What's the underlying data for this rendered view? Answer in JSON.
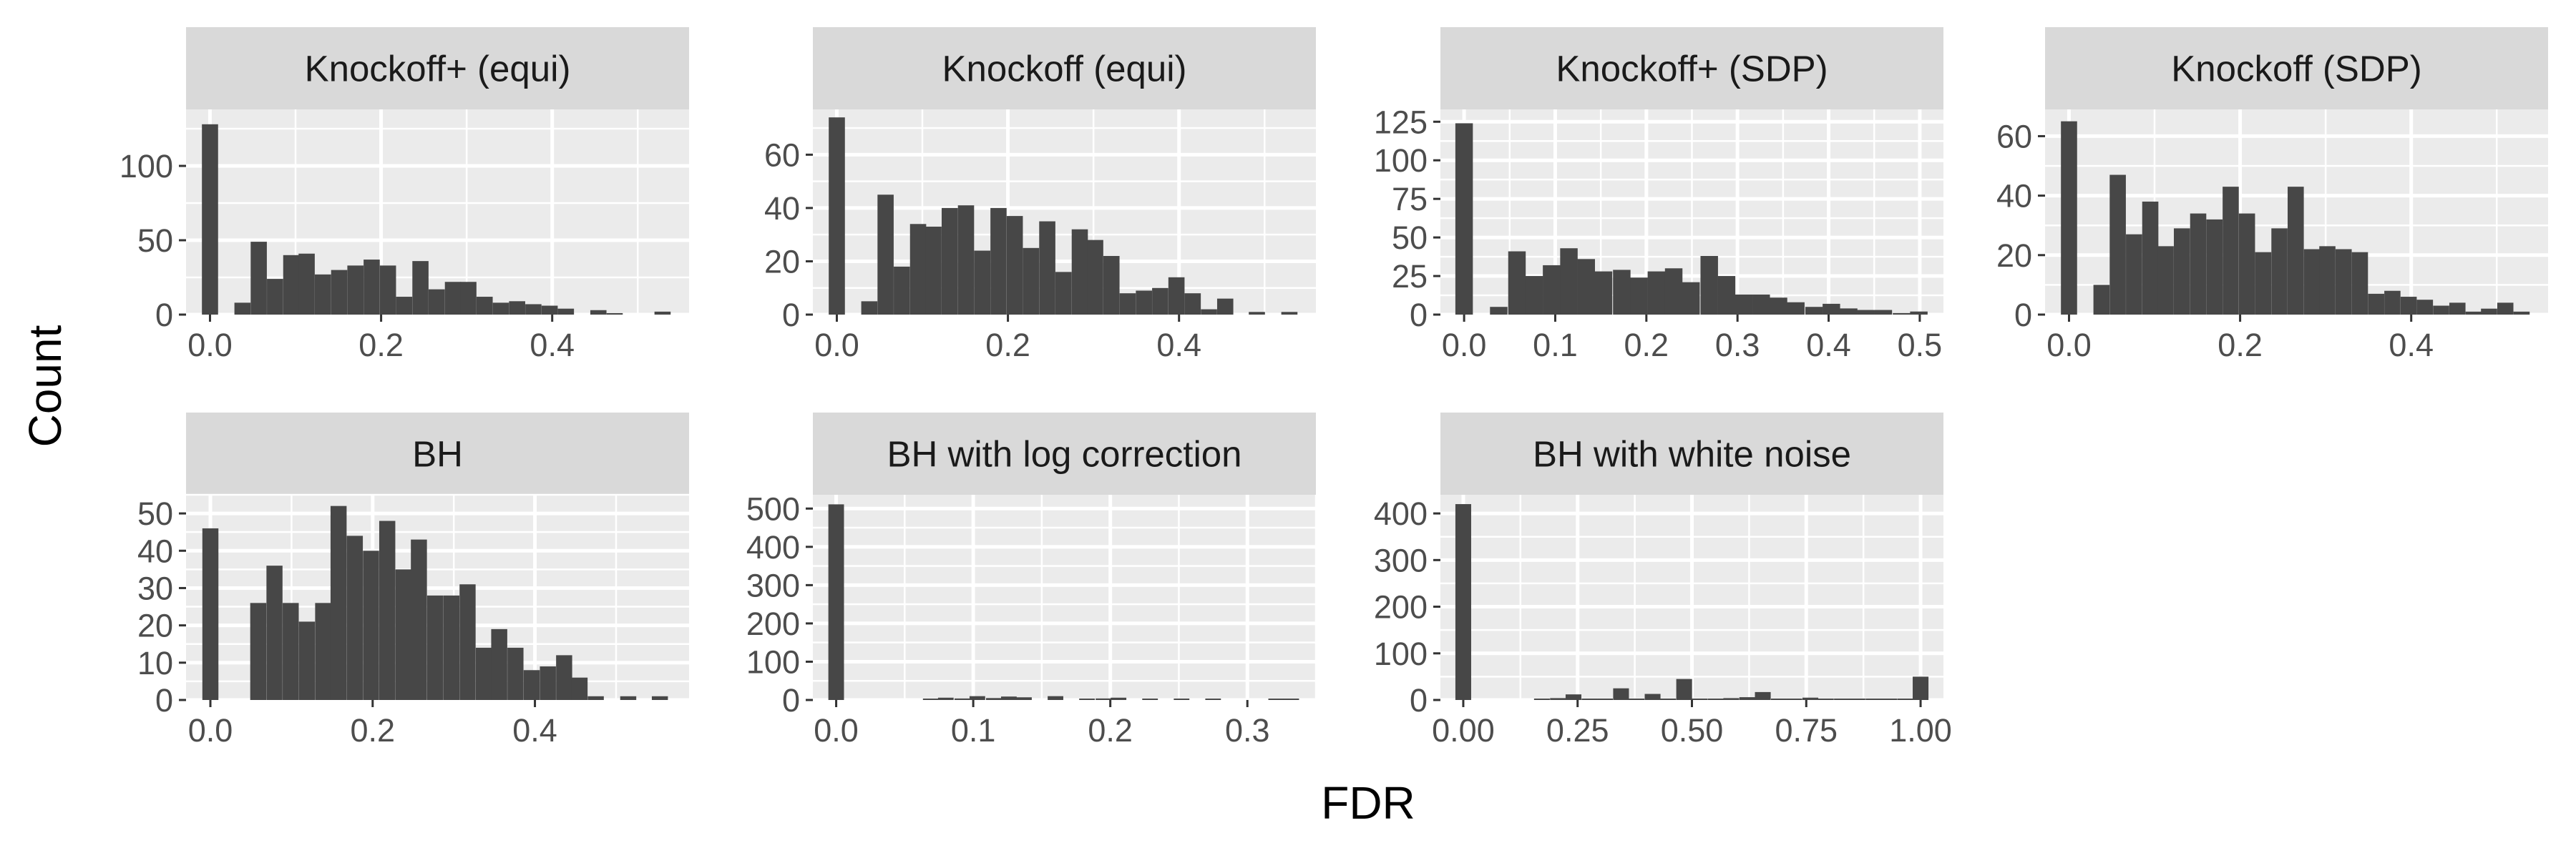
{
  "figure": {
    "xlabel": "FDR",
    "ylabel": "Count"
  },
  "colors": {
    "panel_bg": "#ebebeb",
    "grid_major": "#ffffff",
    "strip_bg": "#d9d9d9",
    "bar_fill": "#474747"
  },
  "chart_data": [
    {
      "type": "bar",
      "title": "Knockoff+ (equi)",
      "bin_width": 0.0189,
      "xlim": [
        -0.028,
        0.56
      ],
      "ylim": [
        0,
        138
      ],
      "xticks": [
        0.0,
        0.2,
        0.4
      ],
      "xtick_labels": [
        "0.0",
        "0.2",
        "0.4"
      ],
      "yticks": [
        0,
        50,
        100
      ],
      "ytick_labels": [
        "0",
        "50",
        "100"
      ],
      "bins_x": [
        0.0,
        0.038,
        0.057,
        0.076,
        0.095,
        0.113,
        0.132,
        0.151,
        0.17,
        0.189,
        0.208,
        0.227,
        0.246,
        0.265,
        0.284,
        0.302,
        0.321,
        0.34,
        0.359,
        0.378,
        0.397,
        0.416,
        0.454,
        0.473,
        0.529
      ],
      "values": [
        128,
        8,
        49,
        24,
        40,
        41,
        27,
        30,
        33,
        37,
        33,
        12,
        36,
        17,
        22,
        22,
        12,
        8,
        9,
        7,
        6,
        4,
        3,
        1,
        2
      ]
    },
    {
      "type": "bar",
      "title": "Knockoff (equi)",
      "bin_width": 0.0189,
      "xlim": [
        -0.028,
        0.56
      ],
      "ylim": [
        0,
        77
      ],
      "xticks": [
        0.0,
        0.2,
        0.4
      ],
      "xtick_labels": [
        "0.0",
        "0.2",
        "0.4"
      ],
      "yticks": [
        0,
        20,
        40,
        60
      ],
      "ytick_labels": [
        "0",
        "20",
        "40",
        "60"
      ],
      "bins_x": [
        0.0,
        0.038,
        0.057,
        0.076,
        0.095,
        0.113,
        0.132,
        0.151,
        0.17,
        0.189,
        0.208,
        0.227,
        0.246,
        0.265,
        0.284,
        0.302,
        0.321,
        0.34,
        0.359,
        0.378,
        0.397,
        0.416,
        0.435,
        0.454,
        0.491,
        0.529
      ],
      "values": [
        74,
        5,
        45,
        18,
        34,
        33,
        40,
        41,
        24,
        40,
        37,
        25,
        35,
        16,
        32,
        28,
        22,
        8,
        9,
        10,
        14,
        8,
        2,
        6,
        1,
        1
      ]
    },
    {
      "type": "bar",
      "title": "Knockoff+ (SDP)",
      "bin_width": 0.0192,
      "xlim": [
        -0.026,
        0.526
      ],
      "ylim": [
        0,
        133
      ],
      "xticks": [
        0.0,
        0.1,
        0.2,
        0.3,
        0.4,
        0.5
      ],
      "xtick_labels": [
        "0.0",
        "0.1",
        "0.2",
        "0.3",
        "0.4",
        "0.5"
      ],
      "yticks": [
        0,
        25,
        50,
        75,
        100,
        125
      ],
      "ytick_labels": [
        "0",
        "25",
        "50",
        "75",
        "100",
        "125"
      ],
      "bins_x": [
        0.0,
        0.038,
        0.058,
        0.077,
        0.096,
        0.115,
        0.134,
        0.153,
        0.173,
        0.192,
        0.211,
        0.23,
        0.249,
        0.269,
        0.288,
        0.307,
        0.326,
        0.345,
        0.364,
        0.384,
        0.403,
        0.422,
        0.441,
        0.46,
        0.48,
        0.499
      ],
      "values": [
        124,
        5,
        41,
        25,
        32,
        43,
        36,
        28,
        29,
        24,
        28,
        30,
        21,
        38,
        25,
        13,
        13,
        11,
        8,
        5,
        7,
        4,
        3,
        3,
        1,
        2
      ]
    },
    {
      "type": "bar",
      "title": "Knockoff (SDP)",
      "bin_width": 0.0189,
      "xlim": [
        -0.028,
        0.56
      ],
      "ylim": [
        0,
        69
      ],
      "xticks": [
        0.0,
        0.2,
        0.4
      ],
      "xtick_labels": [
        "0.0",
        "0.2",
        "0.4"
      ],
      "yticks": [
        0,
        20,
        40,
        60
      ],
      "ytick_labels": [
        "0",
        "20",
        "40",
        "60"
      ],
      "bins_x": [
        0.0,
        0.038,
        0.057,
        0.076,
        0.095,
        0.113,
        0.132,
        0.151,
        0.17,
        0.189,
        0.208,
        0.227,
        0.246,
        0.265,
        0.284,
        0.302,
        0.321,
        0.34,
        0.359,
        0.378,
        0.397,
        0.416,
        0.435,
        0.454,
        0.473,
        0.491,
        0.51,
        0.529
      ],
      "values": [
        65,
        10,
        47,
        27,
        38,
        23,
        29,
        34,
        32,
        43,
        34,
        21,
        29,
        43,
        22,
        23,
        22,
        21,
        7,
        8,
        6,
        5,
        3,
        4,
        1,
        2,
        4,
        1
      ]
    },
    {
      "type": "bar",
      "title": "BH",
      "bin_width": 0.0198,
      "xlim": [
        -0.03,
        0.59
      ],
      "ylim": [
        0,
        55
      ],
      "xticks": [
        0.0,
        0.2,
        0.4
      ],
      "xtick_labels": [
        "0.0",
        "0.2",
        "0.4"
      ],
      "yticks": [
        0,
        10,
        20,
        30,
        40,
        50
      ],
      "ytick_labels": [
        "0",
        "10",
        "20",
        "30",
        "40",
        "50"
      ],
      "bins_x": [
        0.0,
        0.059,
        0.079,
        0.099,
        0.119,
        0.139,
        0.158,
        0.178,
        0.198,
        0.218,
        0.238,
        0.257,
        0.277,
        0.297,
        0.317,
        0.337,
        0.356,
        0.376,
        0.396,
        0.416,
        0.436,
        0.455,
        0.475,
        0.515,
        0.554
      ],
      "values": [
        46,
        26,
        36,
        26,
        21,
        26,
        52,
        44,
        40,
        48,
        35,
        43,
        28,
        28,
        31,
        14,
        19,
        14,
        8,
        9,
        12,
        6,
        1,
        1,
        1
      ]
    },
    {
      "type": "bar",
      "title": "BH with log correction",
      "bin_width": 0.0114,
      "xlim": [
        -0.017,
        0.35
      ],
      "ylim": [
        0,
        536
      ],
      "xticks": [
        0.0,
        0.1,
        0.2,
        0.3
      ],
      "xtick_labels": [
        "0.0",
        "0.1",
        "0.2",
        "0.3"
      ],
      "yticks": [
        0,
        100,
        200,
        300,
        400,
        500
      ],
      "ytick_labels": [
        "0",
        "100",
        "200",
        "300",
        "400",
        "500"
      ],
      "bins_x": [
        0.0,
        0.069,
        0.08,
        0.092,
        0.103,
        0.115,
        0.126,
        0.137,
        0.16,
        0.183,
        0.195,
        0.206,
        0.229,
        0.252,
        0.275,
        0.321,
        0.332
      ],
      "values": [
        511,
        2,
        6,
        4,
        10,
        5,
        9,
        7,
        10,
        3,
        4,
        6,
        2,
        3,
        2,
        2,
        1
      ]
    },
    {
      "type": "bar",
      "title": "BH with white noise",
      "bin_width": 0.0345,
      "xlim": [
        -0.05,
        1.05
      ],
      "ylim": [
        0,
        440
      ],
      "xticks": [
        0.0,
        0.25,
        0.5,
        0.75,
        1.0
      ],
      "xtick_labels": [
        "0.00",
        "0.25",
        "0.50",
        "0.75",
        "1.00"
      ],
      "yticks": [
        0,
        100,
        200,
        300,
        400
      ],
      "ytick_labels": [
        "0",
        "100",
        "200",
        "300",
        "400"
      ],
      "bins_x": [
        0.0,
        0.172,
        0.207,
        0.241,
        0.276,
        0.31,
        0.345,
        0.379,
        0.414,
        0.448,
        0.483,
        0.517,
        0.552,
        0.586,
        0.621,
        0.655,
        0.69,
        0.724,
        0.759,
        0.793,
        0.828,
        0.862,
        0.897,
        0.931,
        0.966,
        1.0
      ],
      "values": [
        420,
        2,
        4,
        12,
        2,
        1,
        25,
        3,
        13,
        2,
        45,
        3,
        3,
        4,
        6,
        17,
        2,
        3,
        5,
        3,
        1,
        2,
        1,
        2,
        1,
        50
      ]
    }
  ]
}
